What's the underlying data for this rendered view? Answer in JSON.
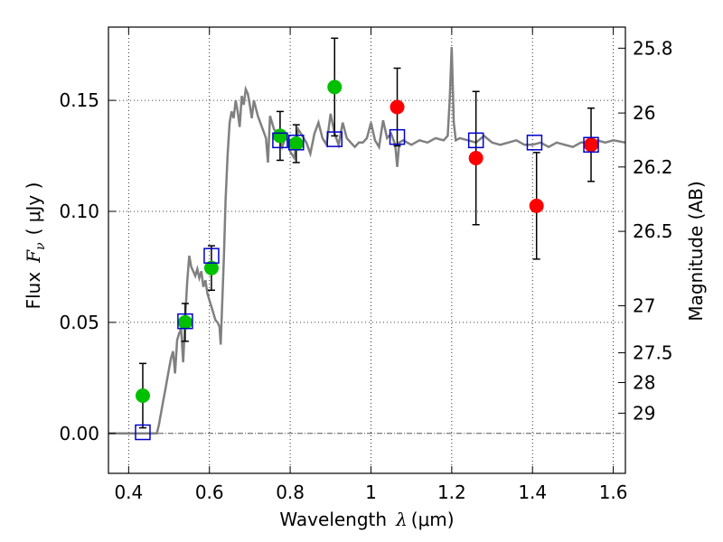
{
  "chart_data": {
    "type": "scatter",
    "xlabel_text": "Wavelength",
    "xlabel_symbol": "λ",
    "xlabel_unit": "(μm)",
    "ylabel_text": "Flux",
    "ylabel_symbol": "F",
    "ylabel_sub": "ν",
    "ylabel_unit": "( μJy )",
    "y2label": "Magnitude (AB)",
    "xlim": [
      0.35,
      1.63
    ],
    "ylim": [
      -0.018,
      0.183
    ],
    "grid": true,
    "x_ticks": [
      {
        "value": 0.4,
        "label": "0.4"
      },
      {
        "value": 0.6,
        "label": "0.6"
      },
      {
        "value": 0.8,
        "label": "0.8"
      },
      {
        "value": 1.0,
        "label": "1"
      },
      {
        "value": 1.2,
        "label": "1.2"
      },
      {
        "value": 1.4,
        "label": "1.4"
      },
      {
        "value": 1.6,
        "label": "1.6"
      }
    ],
    "y_ticks": [
      {
        "value": 0.0,
        "label": "0.00"
      },
      {
        "value": 0.05,
        "label": "0.05"
      },
      {
        "value": 0.1,
        "label": "0.10"
      },
      {
        "value": 0.15,
        "label": "0.15"
      }
    ],
    "y2_ticks": [
      {
        "label": "25.8",
        "flux": 0.1735
      },
      {
        "label": "26",
        "flux": 0.1443
      },
      {
        "label": "26.2",
        "flux": 0.12
      },
      {
        "label": "26.5",
        "flux": 0.091
      },
      {
        "label": "27",
        "flux": 0.0575
      },
      {
        "label": "27.5",
        "flux": 0.0363
      },
      {
        "label": "28",
        "flux": 0.0229
      },
      {
        "label": "29",
        "flux": 0.0091
      }
    ],
    "colors": {
      "model_line": "#808080",
      "green": "#00c000",
      "red": "#ff0000",
      "model_box": "#0000cc",
      "errorbar": "#000000",
      "zero_line": "#555555"
    },
    "green_points": [
      {
        "x": 0.435,
        "y": 0.017,
        "err": 0.0145
      },
      {
        "x": 0.54,
        "y": 0.05,
        "err": 0.0085
      },
      {
        "x": 0.605,
        "y": 0.0745,
        "err": 0.01
      },
      {
        "x": 0.775,
        "y": 0.134,
        "err": 0.011
      },
      {
        "x": 0.815,
        "y": 0.1305,
        "err": 0.0085
      },
      {
        "x": 0.91,
        "y": 0.156,
        "err": 0.022
      }
    ],
    "red_points": [
      {
        "x": 1.065,
        "y": 0.147,
        "err": 0.0175
      },
      {
        "x": 1.26,
        "y": 0.124,
        "err": 0.03
      },
      {
        "x": 1.41,
        "y": 0.1025,
        "err": 0.024
      },
      {
        "x": 1.545,
        "y": 0.13,
        "err": 0.0165
      }
    ],
    "model_boxes": [
      {
        "x": 0.435,
        "y": 0.0005
      },
      {
        "x": 0.54,
        "y": 0.0505
      },
      {
        "x": 0.605,
        "y": 0.08
      },
      {
        "x": 0.775,
        "y": 0.132
      },
      {
        "x": 0.815,
        "y": 0.131
      },
      {
        "x": 0.91,
        "y": 0.1325
      },
      {
        "x": 1.065,
        "y": 0.1335
      },
      {
        "x": 1.26,
        "y": 0.132
      },
      {
        "x": 1.405,
        "y": 0.131
      },
      {
        "x": 1.545,
        "y": 0.13
      }
    ],
    "model_spectrum": {
      "x": [
        0.35,
        0.46,
        0.47,
        0.475,
        0.48,
        0.485,
        0.49,
        0.495,
        0.5,
        0.505,
        0.51,
        0.515,
        0.52,
        0.525,
        0.53,
        0.535,
        0.54,
        0.545,
        0.55,
        0.555,
        0.56,
        0.565,
        0.57,
        0.575,
        0.58,
        0.585,
        0.59,
        0.595,
        0.6,
        0.605,
        0.61,
        0.615,
        0.62,
        0.625,
        0.628,
        0.632,
        0.636,
        0.64,
        0.645,
        0.65,
        0.655,
        0.66,
        0.665,
        0.67,
        0.675,
        0.68,
        0.685,
        0.69,
        0.695,
        0.7,
        0.705,
        0.71,
        0.72,
        0.73,
        0.74,
        0.745,
        0.75,
        0.76,
        0.77,
        0.78,
        0.79,
        0.8,
        0.81,
        0.82,
        0.83,
        0.84,
        0.85,
        0.86,
        0.87,
        0.88,
        0.89,
        0.9,
        0.91,
        0.92,
        0.93,
        0.94,
        0.95,
        0.96,
        0.97,
        0.98,
        0.99,
        1.0,
        1.01,
        1.02,
        1.03,
        1.04,
        1.05,
        1.06,
        1.065,
        1.07,
        1.08,
        1.09,
        1.1,
        1.12,
        1.14,
        1.16,
        1.18,
        1.19,
        1.195,
        1.2,
        1.205,
        1.21,
        1.22,
        1.24,
        1.26,
        1.28,
        1.3,
        1.32,
        1.34,
        1.36,
        1.38,
        1.4,
        1.42,
        1.44,
        1.46,
        1.48,
        1.5,
        1.52,
        1.54,
        1.56,
        1.58,
        1.6,
        1.63
      ],
      "y": [
        0.0,
        0.0,
        0.0,
        0.004,
        0.009,
        0.014,
        0.019,
        0.024,
        0.029,
        0.034,
        0.037,
        0.027,
        0.042,
        0.045,
        0.047,
        0.032,
        0.052,
        0.068,
        0.08,
        0.075,
        0.073,
        0.071,
        0.074,
        0.07,
        0.073,
        0.066,
        0.069,
        0.063,
        0.06,
        0.057,
        0.054,
        0.051,
        0.05,
        0.048,
        0.04,
        0.06,
        0.08,
        0.105,
        0.125,
        0.14,
        0.145,
        0.142,
        0.15,
        0.145,
        0.138,
        0.152,
        0.148,
        0.155,
        0.153,
        0.148,
        0.142,
        0.15,
        0.143,
        0.138,
        0.133,
        0.122,
        0.143,
        0.137,
        0.135,
        0.129,
        0.134,
        0.127,
        0.124,
        0.137,
        0.134,
        0.131,
        0.126,
        0.135,
        0.14,
        0.133,
        0.13,
        0.144,
        0.135,
        0.13,
        0.14,
        0.133,
        0.131,
        0.129,
        0.131,
        0.131,
        0.133,
        0.14,
        0.132,
        0.129,
        0.141,
        0.133,
        0.135,
        0.13,
        0.12,
        0.131,
        0.132,
        0.131,
        0.13,
        0.132,
        0.131,
        0.133,
        0.132,
        0.134,
        0.15,
        0.174,
        0.14,
        0.132,
        0.133,
        0.132,
        0.131,
        0.134,
        0.131,
        0.13,
        0.131,
        0.132,
        0.13,
        0.13,
        0.131,
        0.129,
        0.131,
        0.13,
        0.129,
        0.131,
        0.131,
        0.132,
        0.131,
        0.132,
        0.131
      ]
    }
  }
}
